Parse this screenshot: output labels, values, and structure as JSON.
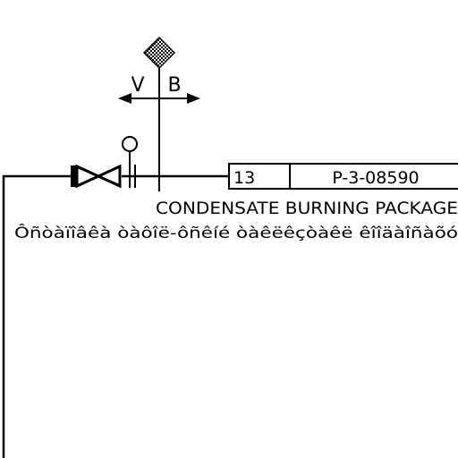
{
  "diagram": {
    "arrow_labels": {
      "left": "V",
      "right": "B"
    },
    "line_number_box": {
      "number": "13",
      "tag": "P-3-08590"
    },
    "destination": {
      "title": "CONDENSATE BURNING PACKAGE",
      "subtitle": "Ôñòàïîâêà òàôîë-ôñêíé òàêëêçòàêë êîîäàîñàõó"
    }
  }
}
